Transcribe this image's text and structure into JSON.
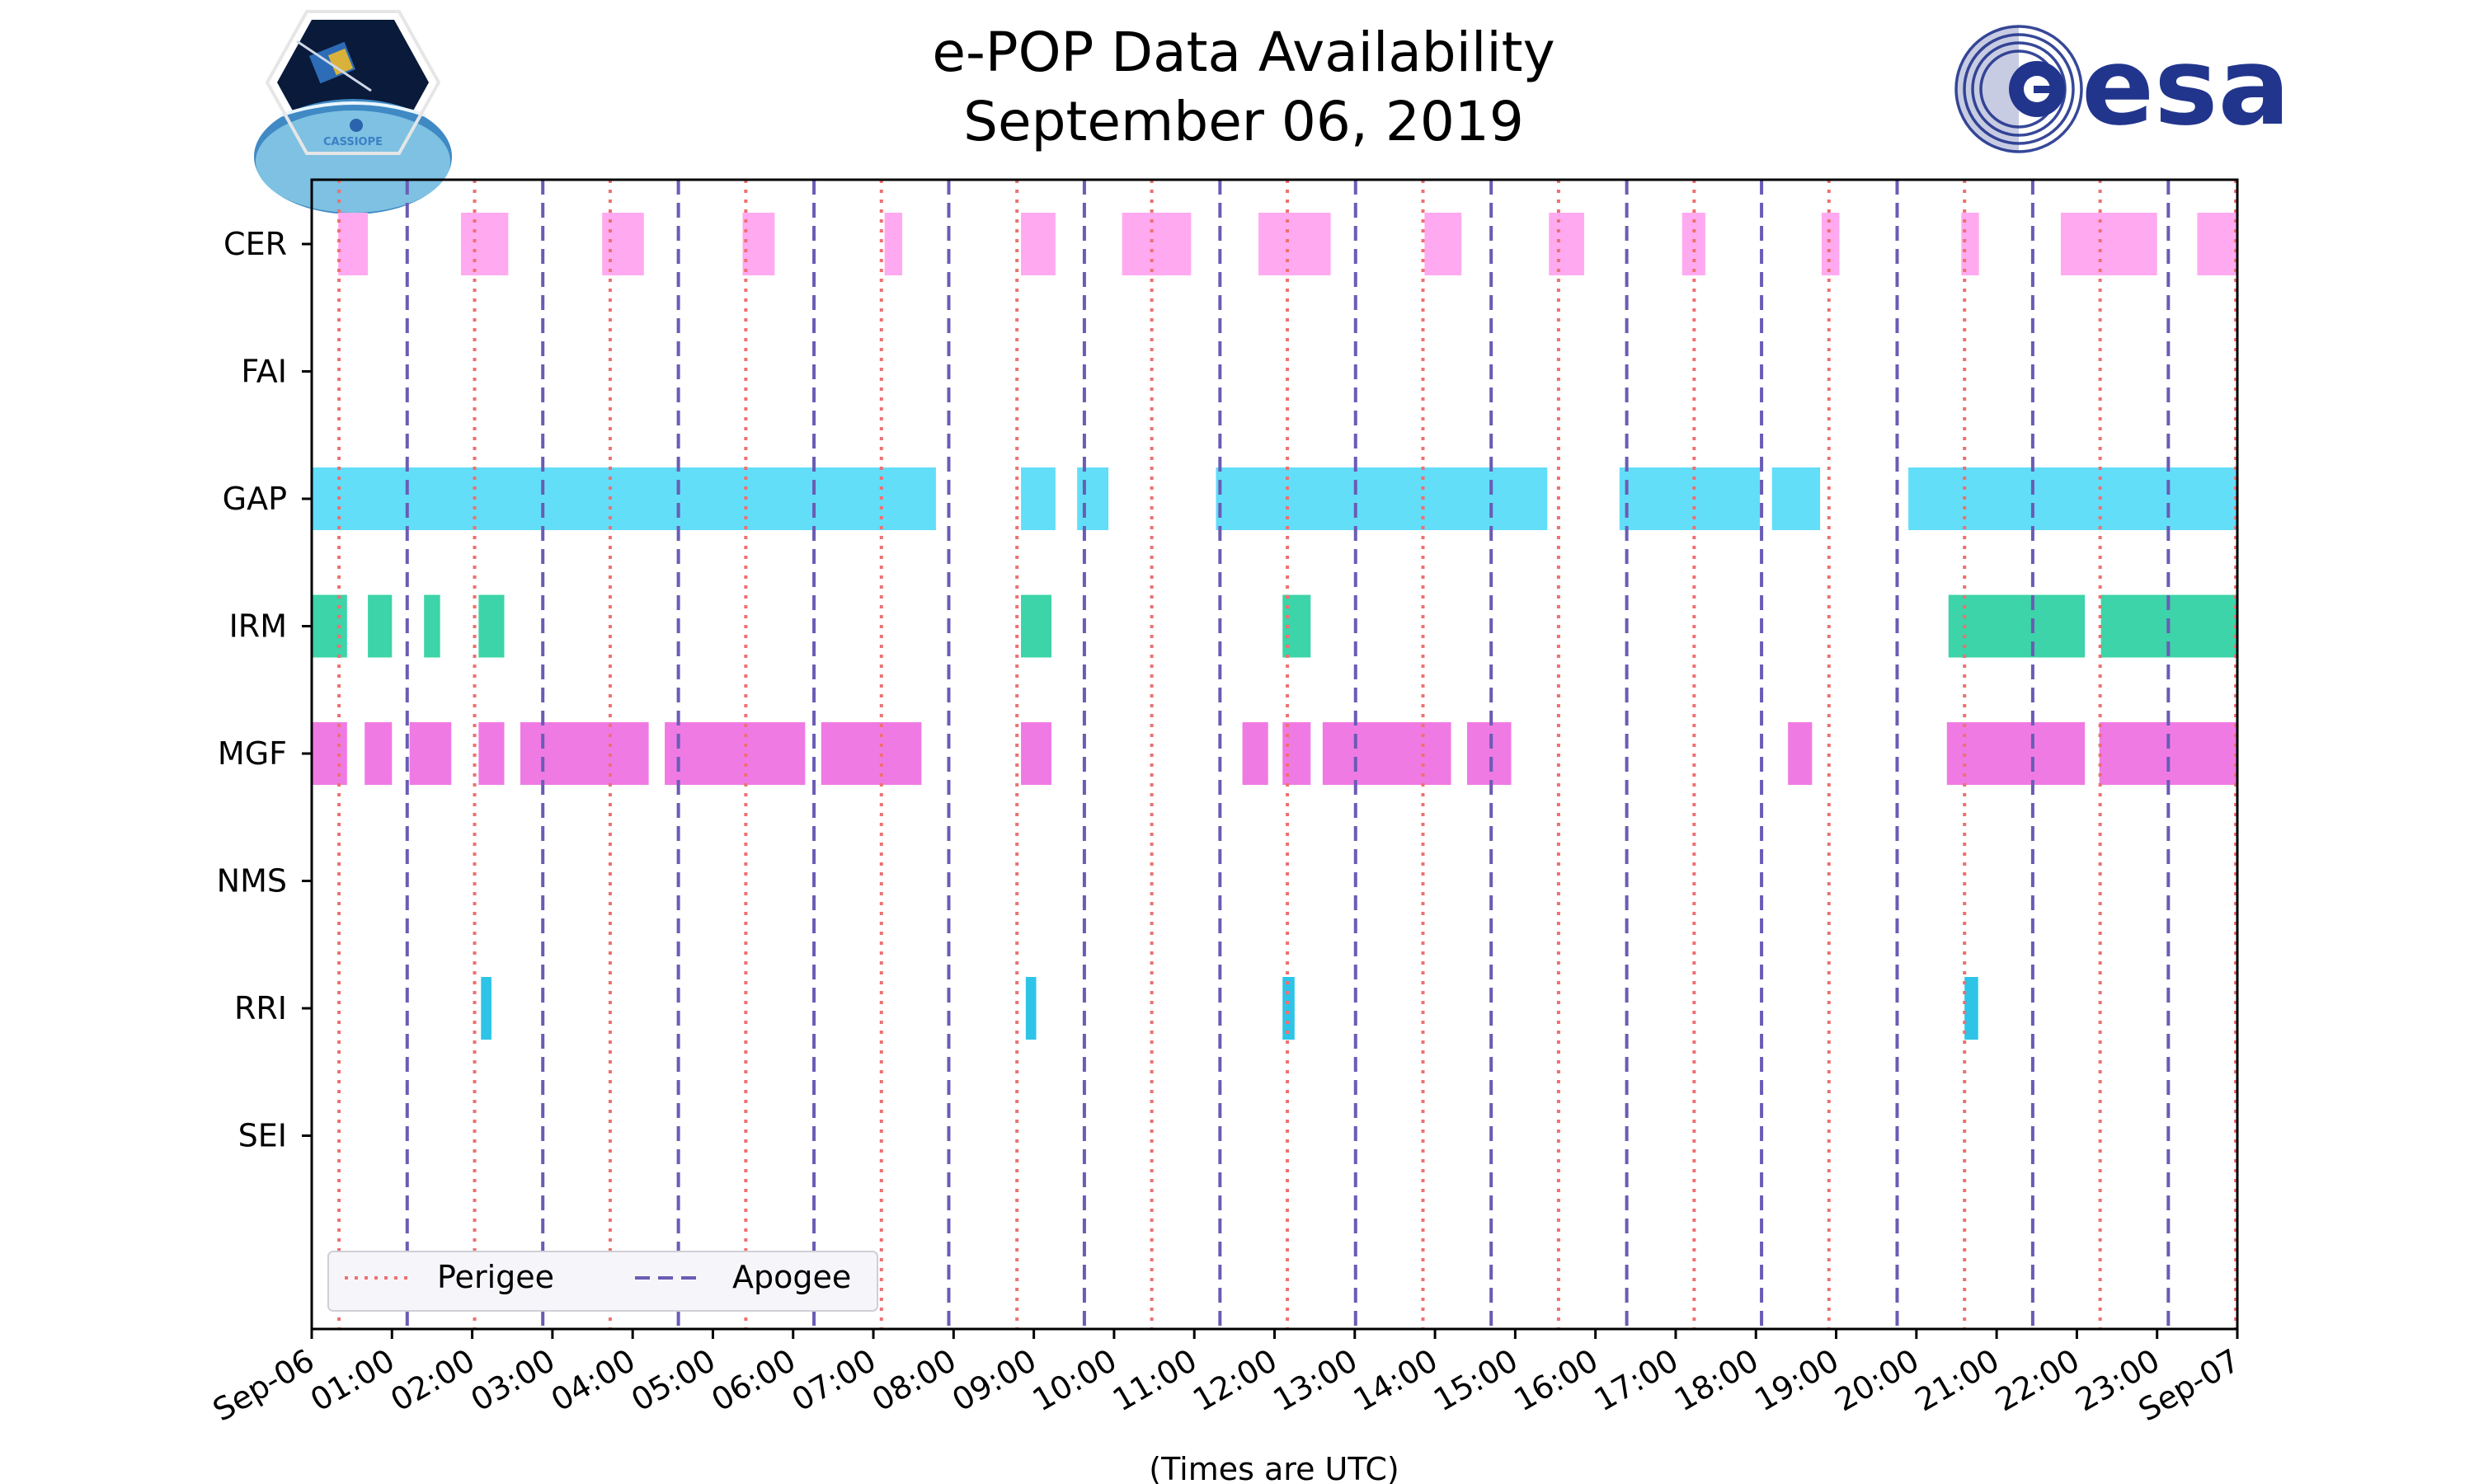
{
  "chart_data": {
    "type": "timeline",
    "title_line1": "e-POP Data Availability",
    "title_line2": "September 06, 2019",
    "xlabel": "(Times are UTC)",
    "x_range_hours": [
      0,
      24
    ],
    "x_tick_labels": [
      "Sep-06",
      "01:00",
      "02:00",
      "03:00",
      "04:00",
      "05:00",
      "06:00",
      "07:00",
      "08:00",
      "09:00",
      "10:00",
      "11:00",
      "12:00",
      "13:00",
      "14:00",
      "15:00",
      "16:00",
      "17:00",
      "18:00",
      "19:00",
      "20:00",
      "21:00",
      "22:00",
      "23:00",
      "Sep-07"
    ],
    "instruments": [
      "CER",
      "FAI",
      "GAP",
      "IRM",
      "MGF",
      "NMS",
      "RRI",
      "SEI"
    ],
    "intervals": {
      "CER": [
        [
          0.33,
          0.7
        ],
        [
          1.86,
          2.45
        ],
        [
          3.62,
          4.14
        ],
        [
          5.37,
          5.77
        ],
        [
          7.14,
          7.36
        ],
        [
          8.84,
          9.27
        ],
        [
          10.1,
          10.96
        ],
        [
          11.8,
          12.7
        ],
        [
          13.87,
          14.33
        ],
        [
          15.42,
          15.86
        ],
        [
          17.08,
          17.37
        ],
        [
          18.82,
          19.04
        ],
        [
          20.56,
          20.78
        ],
        [
          21.8,
          23.0
        ],
        [
          23.5,
          24.0
        ]
      ],
      "FAI": [],
      "GAP": [
        [
          0.0,
          7.78
        ],
        [
          8.84,
          9.27
        ],
        [
          9.54,
          9.93
        ],
        [
          11.27,
          15.4
        ],
        [
          16.3,
          18.05
        ],
        [
          18.2,
          18.8
        ],
        [
          19.9,
          24.0
        ]
      ],
      "IRM": [
        [
          0.0,
          0.44
        ],
        [
          0.7,
          1.0
        ],
        [
          1.4,
          1.6
        ],
        [
          2.08,
          2.4
        ],
        [
          8.84,
          9.22
        ],
        [
          12.1,
          12.45
        ],
        [
          20.4,
          22.1
        ],
        [
          22.3,
          24.0
        ]
      ],
      "MGF": [
        [
          0.0,
          0.44
        ],
        [
          0.66,
          1.0
        ],
        [
          1.22,
          1.74
        ],
        [
          2.08,
          2.4
        ],
        [
          2.6,
          4.2
        ],
        [
          4.4,
          6.15
        ],
        [
          6.35,
          7.6
        ],
        [
          8.84,
          9.22
        ],
        [
          11.6,
          11.92
        ],
        [
          12.1,
          12.45
        ],
        [
          12.6,
          14.2
        ],
        [
          14.4,
          14.95
        ],
        [
          18.4,
          18.7
        ],
        [
          20.38,
          22.1
        ],
        [
          22.28,
          24.0
        ]
      ],
      "NMS": [],
      "RRI": [
        [
          2.11,
          2.24
        ],
        [
          8.9,
          9.03
        ],
        [
          12.1,
          12.25
        ],
        [
          20.6,
          20.77
        ]
      ],
      "SEI": []
    },
    "perigee_hours": [
      0.34,
      2.03,
      3.72,
      5.41,
      7.1,
      8.79,
      10.47,
      12.16,
      13.85,
      15.54,
      17.23,
      18.91,
      20.6,
      22.29,
      23.98
    ],
    "apogee_hours": [
      1.19,
      2.88,
      4.57,
      6.26,
      7.94,
      9.63,
      11.32,
      13.01,
      14.7,
      16.39,
      18.07,
      19.76,
      21.45,
      23.14
    ],
    "legend": [
      {
        "label": "Perigee",
        "style": "dotted"
      },
      {
        "label": "Apogee",
        "style": "dashed"
      }
    ],
    "colors": {
      "CER": "#ffaaf0",
      "GAP": "#62def9",
      "IRM": "#3cd4a8",
      "MGF": "#f07ae4",
      "RRI": "#2ec4e8",
      "perigee": "#ee7070",
      "apogee": "#6a5cb5"
    }
  },
  "logos": {
    "left_text": "CASSIOPE",
    "right_text": "esa"
  }
}
